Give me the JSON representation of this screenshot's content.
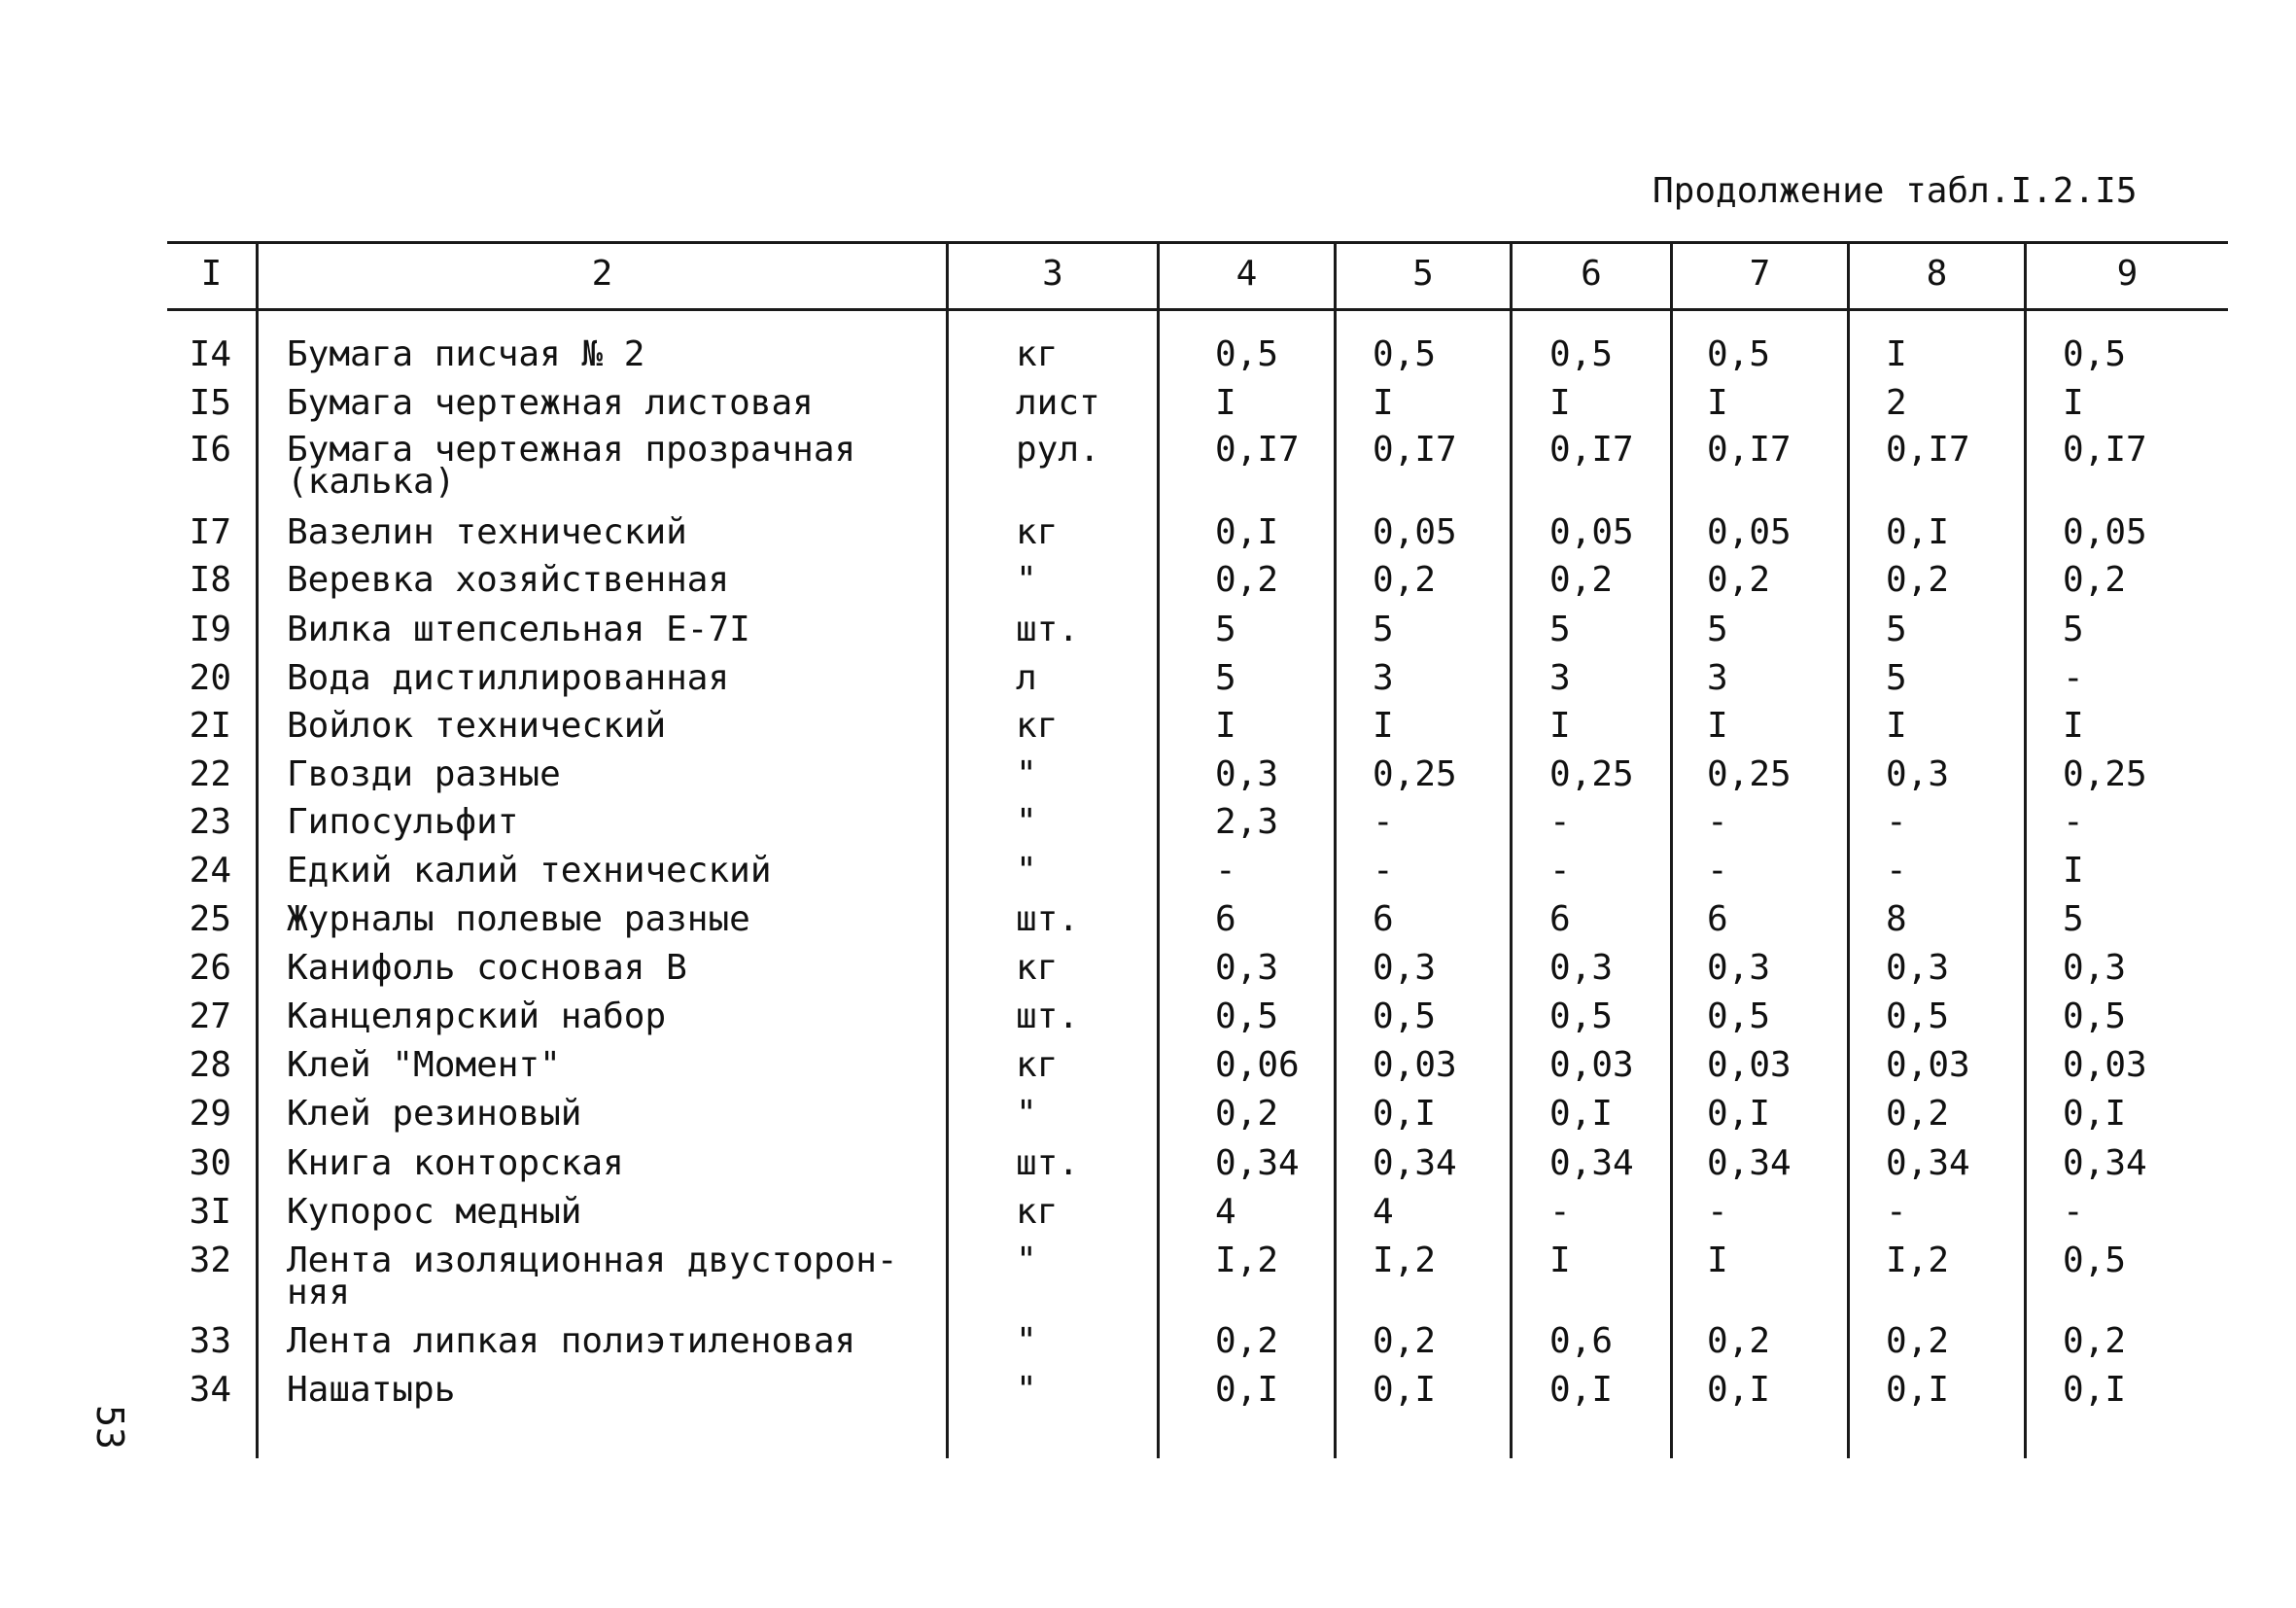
{
  "caption": "Продолжение табл.I.2.I5",
  "page_number": "53",
  "table": {
    "headers": [
      "I",
      "2",
      "3",
      "4",
      "5",
      "6",
      "7",
      "8",
      "9"
    ],
    "rows": [
      {
        "num": "I4",
        "name": [
          "Бумага писчая № 2"
        ],
        "unit": "кг",
        "values": [
          "0,5",
          "0,5",
          "0,5",
          "0,5",
          "I",
          "0,5"
        ]
      },
      {
        "num": "I5",
        "name": [
          "Бумага чертежная листовая"
        ],
        "unit": "лист",
        "values": [
          "I",
          "I",
          "I",
          "I",
          "2",
          "I"
        ]
      },
      {
        "num": "I6",
        "name": [
          "Бумага чертежная прозрачная",
          "(калька)"
        ],
        "unit": "рул.",
        "values": [
          "0,I7",
          "0,I7",
          "0,I7",
          "0,I7",
          "0,I7",
          "0,I7"
        ]
      },
      {
        "num": "I7",
        "name": [
          "Вазелин технический"
        ],
        "unit": "кг",
        "values": [
          "0,I",
          "0,05",
          "0,05",
          "0,05",
          "0,I",
          "0,05"
        ]
      },
      {
        "num": "I8",
        "name": [
          "Веревка хозяйственная"
        ],
        "unit": "\"",
        "values": [
          "0,2",
          "0,2",
          "0,2",
          "0,2",
          "0,2",
          "0,2"
        ]
      },
      {
        "num": "I9",
        "name": [
          "Вилка штепсельная Е-7I"
        ],
        "unit": "шт.",
        "values": [
          "5",
          "5",
          "5",
          "5",
          "5",
          "5"
        ]
      },
      {
        "num": "20",
        "name": [
          "Вода дистиллированная"
        ],
        "unit": "л",
        "values": [
          "5",
          "3",
          "3",
          "3",
          "5",
          "-"
        ]
      },
      {
        "num": "2I",
        "name": [
          "Войлок технический"
        ],
        "unit": "кг",
        "values": [
          "I",
          "I",
          "I",
          "I",
          "I",
          "I"
        ]
      },
      {
        "num": "22",
        "name": [
          "Гвозди разные"
        ],
        "unit": "\"",
        "values": [
          "0,3",
          "0,25",
          "0,25",
          "0,25",
          "0,3",
          "0,25"
        ]
      },
      {
        "num": "23",
        "name": [
          "Гипосульфит"
        ],
        "unit": "\"",
        "values": [
          "2,3",
          "-",
          "-",
          "-",
          "-",
          "-"
        ]
      },
      {
        "num": "24",
        "name": [
          "Едкий калий технический"
        ],
        "unit": "\"",
        "values": [
          "-",
          "-",
          "-",
          "-",
          "-",
          "I"
        ]
      },
      {
        "num": "25",
        "name": [
          "Журналы полевые разные"
        ],
        "unit": "шт.",
        "values": [
          "6",
          "6",
          "6",
          "6",
          "8",
          "5"
        ]
      },
      {
        "num": "26",
        "name": [
          "Канифоль сосновая В"
        ],
        "unit": "кг",
        "values": [
          "0,3",
          "0,3",
          "0,3",
          "0,3",
          "0,3",
          "0,3"
        ]
      },
      {
        "num": "27",
        "name": [
          "Канцелярский набор"
        ],
        "unit": "шт.",
        "values": [
          "0,5",
          "0,5",
          "0,5",
          "0,5",
          "0,5",
          "0,5"
        ]
      },
      {
        "num": "28",
        "name": [
          "Клей \"Момент\""
        ],
        "unit": "кг",
        "values": [
          "0,06",
          "0,03",
          "0,03",
          "0,03",
          "0,03",
          "0,03"
        ]
      },
      {
        "num": "29",
        "name": [
          "Клей резиновый"
        ],
        "unit": "\"",
        "values": [
          "0,2",
          "0,I",
          "0,I",
          "0,I",
          "0,2",
          "0,I"
        ]
      },
      {
        "num": "30",
        "name": [
          "Книга конторская"
        ],
        "unit": "шт.",
        "values": [
          "0,34",
          "0,34",
          "0,34",
          "0,34",
          "0,34",
          "0,34"
        ]
      },
      {
        "num": "3I",
        "name": [
          "Купорос медный"
        ],
        "unit": "кг",
        "values": [
          "4",
          "4",
          "-",
          "-",
          "-",
          "-"
        ]
      },
      {
        "num": "32",
        "name": [
          "Лента изоляционная двусторон-",
          "няя"
        ],
        "unit": "\"",
        "values": [
          "I,2",
          "I,2",
          "I",
          "I",
          "I,2",
          "0,5"
        ]
      },
      {
        "num": "33",
        "name": [
          "Лента липкая полиэтиленовая"
        ],
        "unit": "\"",
        "values": [
          "0,2",
          "0,2",
          "0,6",
          "0,2",
          "0,2",
          "0,2"
        ]
      },
      {
        "num": "34",
        "name": [
          "Нашатырь"
        ],
        "unit": "\"",
        "values": [
          "0,I",
          "0,I",
          "0,I",
          "0,I",
          "0,I",
          "0,I"
        ]
      }
    ]
  }
}
